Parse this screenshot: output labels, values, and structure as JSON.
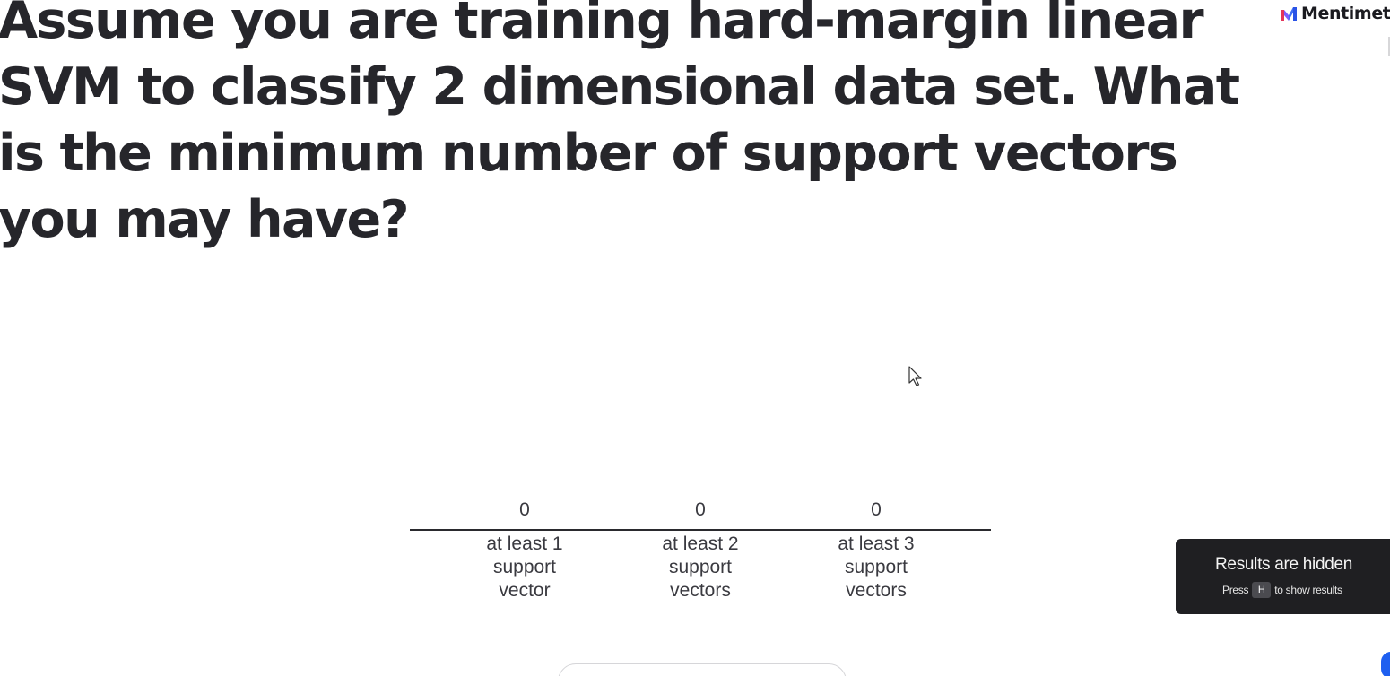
{
  "slide": {
    "question": "Assume you are training hard-margin linear SVM to classify 2 dimensional data set. What is the minimum number of support vectors you may have?"
  },
  "brand": {
    "name": "Mentimete",
    "icon": "mentimeter-logo-icon"
  },
  "chart_data": {
    "type": "bar",
    "categories": [
      "at least 1\nsupport\nvector",
      "at least 2\nsupport\nvectors",
      "at least 3\nsupport\nvectors"
    ],
    "values": [
      0,
      0,
      0
    ],
    "value_labels": [
      "0",
      "0",
      "0"
    ],
    "title": "",
    "xlabel": "",
    "ylabel": "",
    "grid": false
  },
  "results_panel": {
    "title": "Results are hidden",
    "hint_prefix": "Press",
    "hint_key": "H",
    "hint_suffix": "to show results"
  },
  "colors": {
    "background": "#ffffff",
    "text": "#26262b",
    "panel": "#1f1f22",
    "accent_blue": "#1e5ff0"
  }
}
